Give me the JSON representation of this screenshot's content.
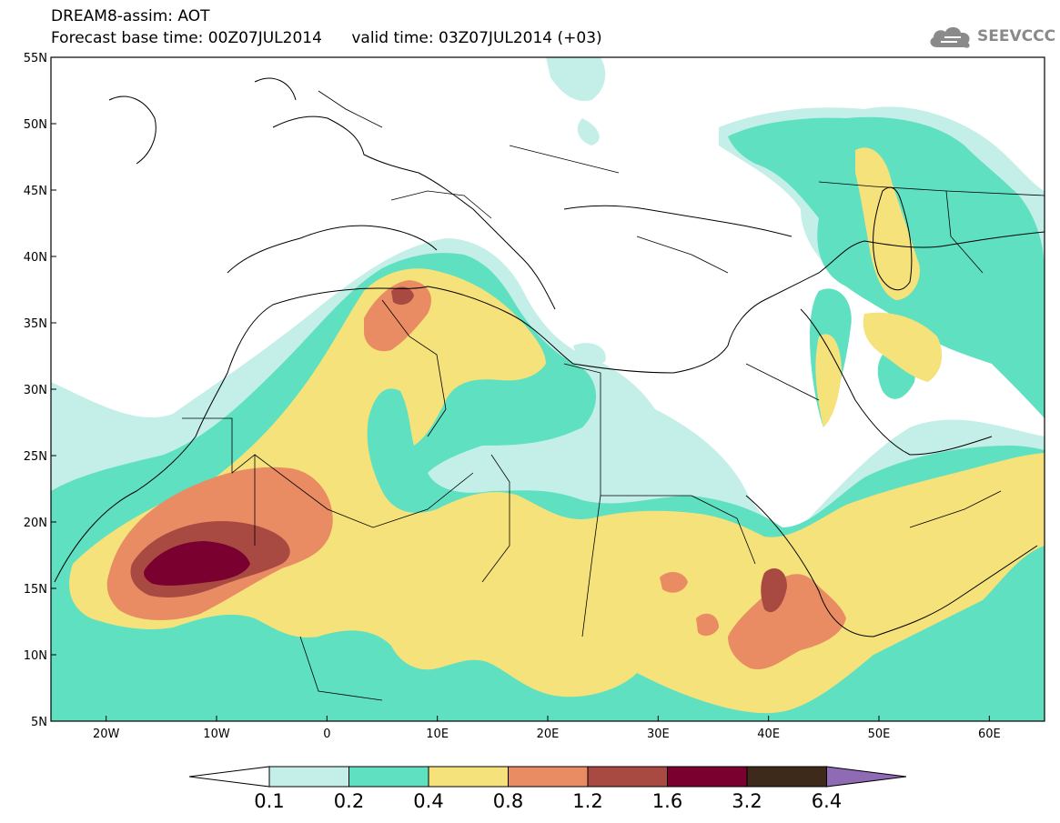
{
  "header": {
    "title": "DREAM8-assim: AOT",
    "base_time": "Forecast base time: 00Z07JUL2014",
    "valid_time": "valid time: 03Z07JUL2014 (+03)"
  },
  "logo": {
    "text": "SEEVCCC",
    "icon": "cloud-icon"
  },
  "map": {
    "lat_ticks": [
      "55N",
      "50N",
      "45N",
      "40N",
      "35N",
      "30N",
      "25N",
      "20N",
      "15N",
      "10N",
      "5N"
    ],
    "lon_ticks": [
      "20W",
      "10W",
      "0",
      "10E",
      "20E",
      "30E",
      "40E",
      "50E",
      "60E"
    ]
  },
  "colorbar": {
    "labels": [
      "0.1",
      "0.2",
      "0.4",
      "0.8",
      "1.2",
      "1.6",
      "3.2",
      "6.4"
    ],
    "colors": [
      "#ffffff",
      "#c4efe8",
      "#5fe0c0",
      "#f5e27a",
      "#e98c64",
      "#a84a42",
      "#7a0030",
      "#3e2a1a",
      "#8e6bb4"
    ]
  },
  "colors": {
    "c01": "#c4efe8",
    "c02": "#5fe0c0",
    "c04": "#f5e27a",
    "c08": "#e98c64",
    "c12": "#a84a42",
    "c16": "#7a0030"
  }
}
